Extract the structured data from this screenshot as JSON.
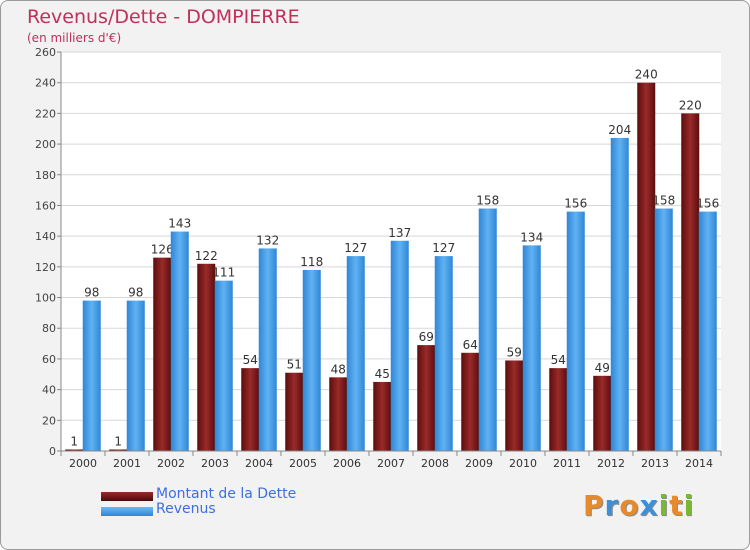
{
  "title": "Revenus/Dette - DOMPIERRE",
  "subtitle": "(en milliers d'€)",
  "logo": {
    "text": "Proxiti",
    "letters": [
      "P",
      "r",
      "o",
      "x",
      "i",
      "t",
      "i"
    ],
    "colors": [
      "#e8892a",
      "#3d8fd8",
      "#e8892a",
      "#3d8fd8",
      "#7ab82f",
      "#e8892a",
      "#7ab82f"
    ]
  },
  "chart_data": {
    "type": "bar",
    "categories": [
      "2000",
      "2001",
      "2002",
      "2003",
      "2004",
      "2005",
      "2006",
      "2007",
      "2008",
      "2009",
      "2010",
      "2011",
      "2012",
      "2013",
      "2014"
    ],
    "series": [
      {
        "name": "Montant de la Dette",
        "color": "#7a1a1a",
        "values": [
          1,
          1,
          126,
          122,
          54,
          51,
          48,
          45,
          69,
          64,
          59,
          54,
          49,
          240,
          220
        ]
      },
      {
        "name": "Revenus",
        "color": "#3d9be9",
        "values": [
          98,
          98,
          143,
          111,
          132,
          118,
          127,
          137,
          127,
          158,
          134,
          156,
          204,
          158,
          156
        ]
      }
    ],
    "ylim": [
      0,
      260
    ],
    "yticks": [
      0,
      20,
      40,
      60,
      80,
      100,
      120,
      140,
      160,
      180,
      200,
      220,
      240,
      260
    ],
    "grid": true,
    "legend_position": "bottom-left"
  }
}
